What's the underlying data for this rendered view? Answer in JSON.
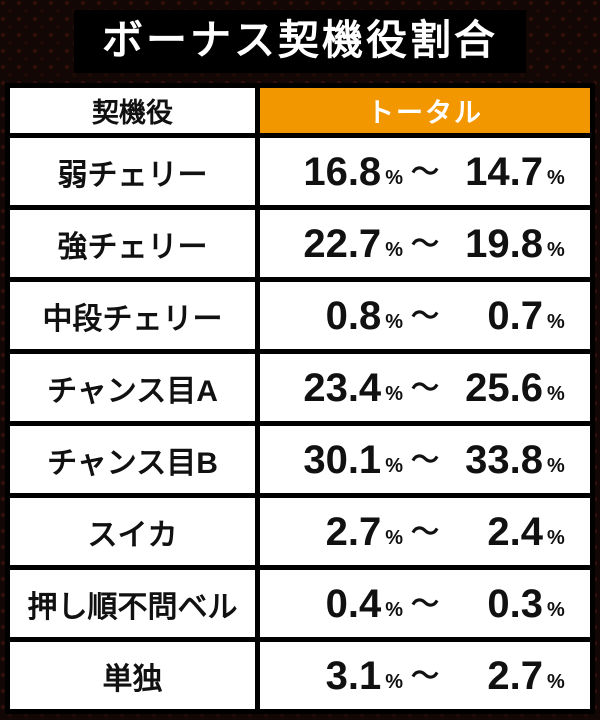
{
  "title": "ボーナス契機役割合",
  "symbols": {
    "percent": "%",
    "tilde": "～"
  },
  "colors": {
    "accent_orange": "#f39700",
    "title_bg": "#000000",
    "title_text": "#ffffff",
    "cell_bg": "#ffffff",
    "border": "#000000",
    "text": "#111111",
    "page_bg": "#120705"
  },
  "chart_data": {
    "type": "table",
    "title": "ボーナス契機役割合",
    "columns": [
      "契機役",
      "トータル"
    ],
    "value_format": "low% ～ high%",
    "rows": [
      {
        "role": "弱チェリー",
        "low": "16.8",
        "high": "14.7"
      },
      {
        "role": "強チェリー",
        "low": "22.7",
        "high": "19.8"
      },
      {
        "role": "中段チェリー",
        "low": "0.8",
        "high": "0.7"
      },
      {
        "role": "チャンス目A",
        "low": "23.4",
        "high": "25.6"
      },
      {
        "role": "チャンス目B",
        "low": "30.1",
        "high": "33.8"
      },
      {
        "role": "スイカ",
        "low": "2.7",
        "high": "2.4"
      },
      {
        "role": "押し順不問ベル",
        "low": "0.4",
        "high": "0.3"
      },
      {
        "role": "単独",
        "low": "3.1",
        "high": "2.7"
      }
    ]
  }
}
